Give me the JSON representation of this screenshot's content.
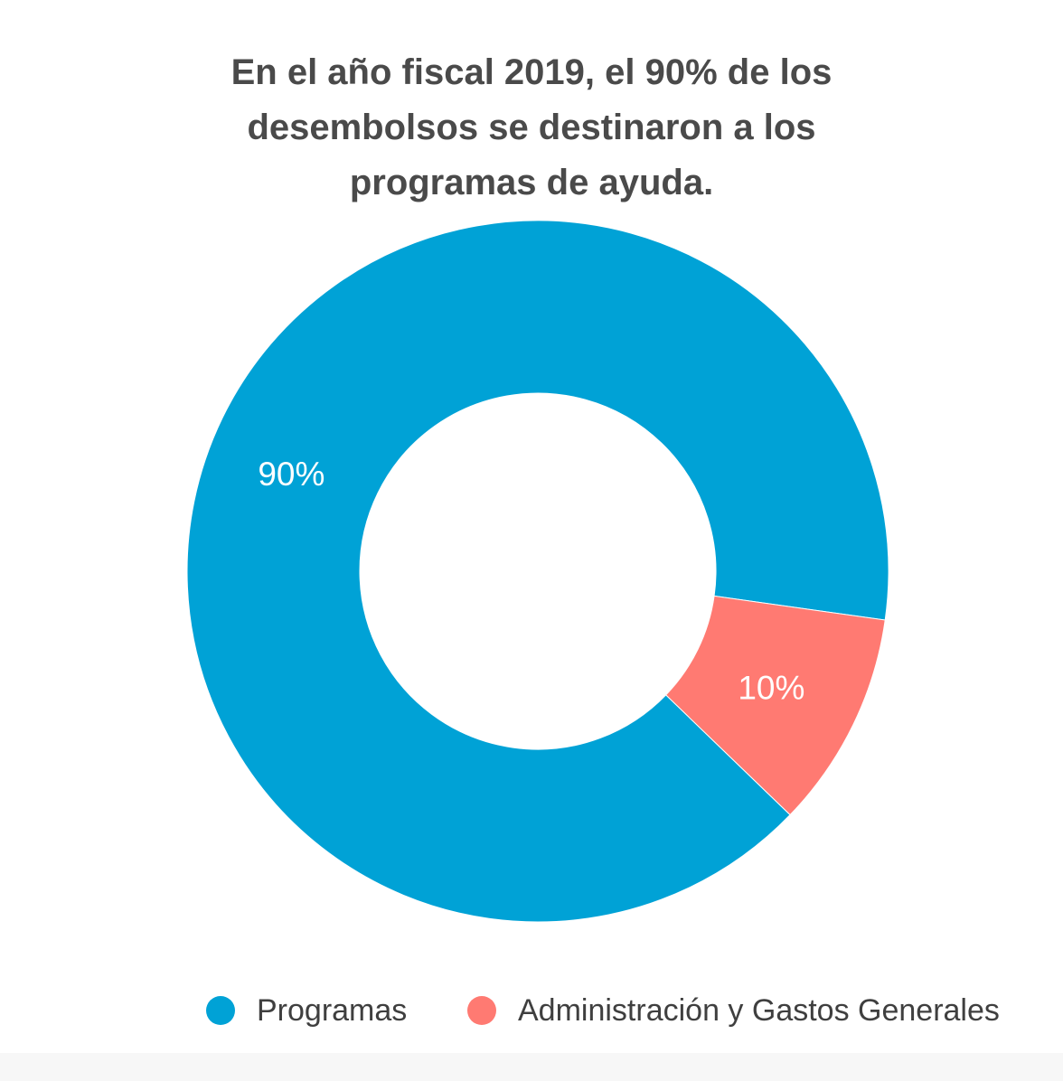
{
  "chart_data": {
    "type": "pie",
    "variant": "donut",
    "title": "En el año fiscal 2019, el 90% de los desembolsos se destinaron a los programas de ayuda.",
    "title_lines": [
      "En el año fiscal 2019, el 90% de los",
      "desembolsos se destinaron a los",
      "programas de ayuda."
    ],
    "categories": [
      "Programas",
      "Administración y Gastos Generales"
    ],
    "values": [
      90,
      10
    ],
    "unit": "%",
    "data_labels": [
      "90%",
      "10%"
    ],
    "colors": [
      "#00a2d6",
      "#ff7a72"
    ],
    "legend_position": "bottom-center"
  },
  "colors": {
    "background": "#ffffff",
    "title_text": "#4a4a4a",
    "legend_text": "#3f3f3f",
    "slice_label_text": "#ffffff"
  }
}
